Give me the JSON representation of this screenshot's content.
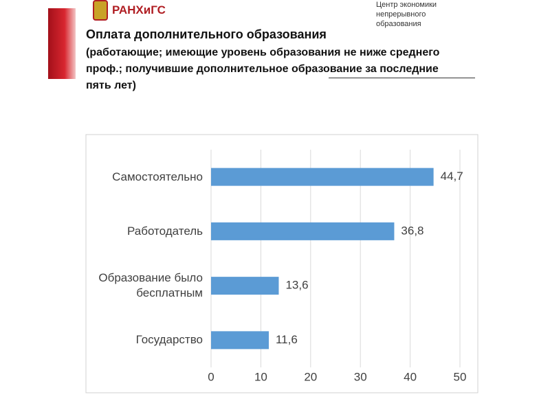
{
  "header": {
    "logo": "РАНХиГС",
    "center": "Центр экономики непрерывного образования"
  },
  "chart_data": {
    "type": "barh",
    "title": "Оплата дополнительного образования",
    "subtitle": "(работающие; имеющие уровень образования не ниже среднего проф.; получившие дополнительное образование за последние пять лет)",
    "categories": [
      "Самостоятельно",
      "Работодатель",
      "Образование было бесплатным",
      "Государство"
    ],
    "values": [
      44.7,
      36.8,
      13.6,
      11.6
    ],
    "value_labels": [
      "44,7",
      "36,8",
      "13,6",
      "11,6"
    ],
    "color": "#5b9bd5",
    "xlim": [
      0,
      50
    ],
    "xticks": [
      0,
      10,
      20,
      30,
      40,
      50
    ],
    "grid": true
  }
}
